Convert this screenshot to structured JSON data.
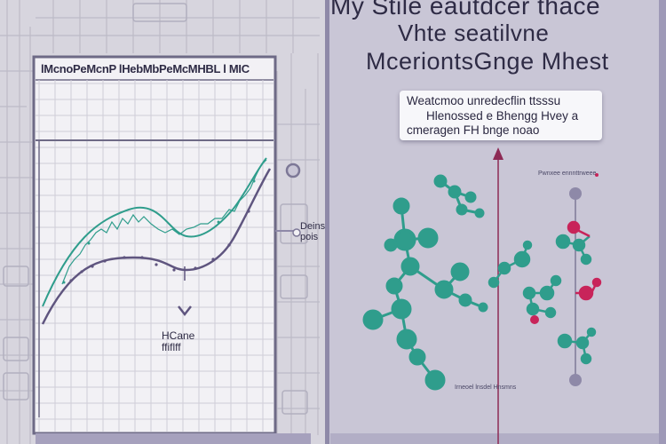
{
  "header": {
    "line1": "My Stile eautdcer thace",
    "line2": "Vhte seatilvne",
    "line3": "MceriontsGnge Mhest"
  },
  "left_chart": {
    "title": "lMcnoPeMcnP lHebMbPeMcMHBL l MIC"
  },
  "callout": {
    "line1": "Weatcmoo unredecflin ttsssu",
    "line2": "Hlenossed e Bhengg Hvey a",
    "line3": "cmeragen FH bnge noao"
  },
  "points_label": {
    "line1": "Deins",
    "line2": "pois"
  },
  "key_label": {
    "line1": "HCane",
    "line2": "ffiflff"
  },
  "small_note": "Pwnxee ennnttrweee",
  "bottom_note": "Irneoel lnsdel Hnsmns",
  "colors": {
    "teal": "#2f9d8c",
    "purple": "#5f557f",
    "magenta": "#c8245a",
    "panel": "#c9c6d6",
    "grid": "#c5c3cf"
  }
}
